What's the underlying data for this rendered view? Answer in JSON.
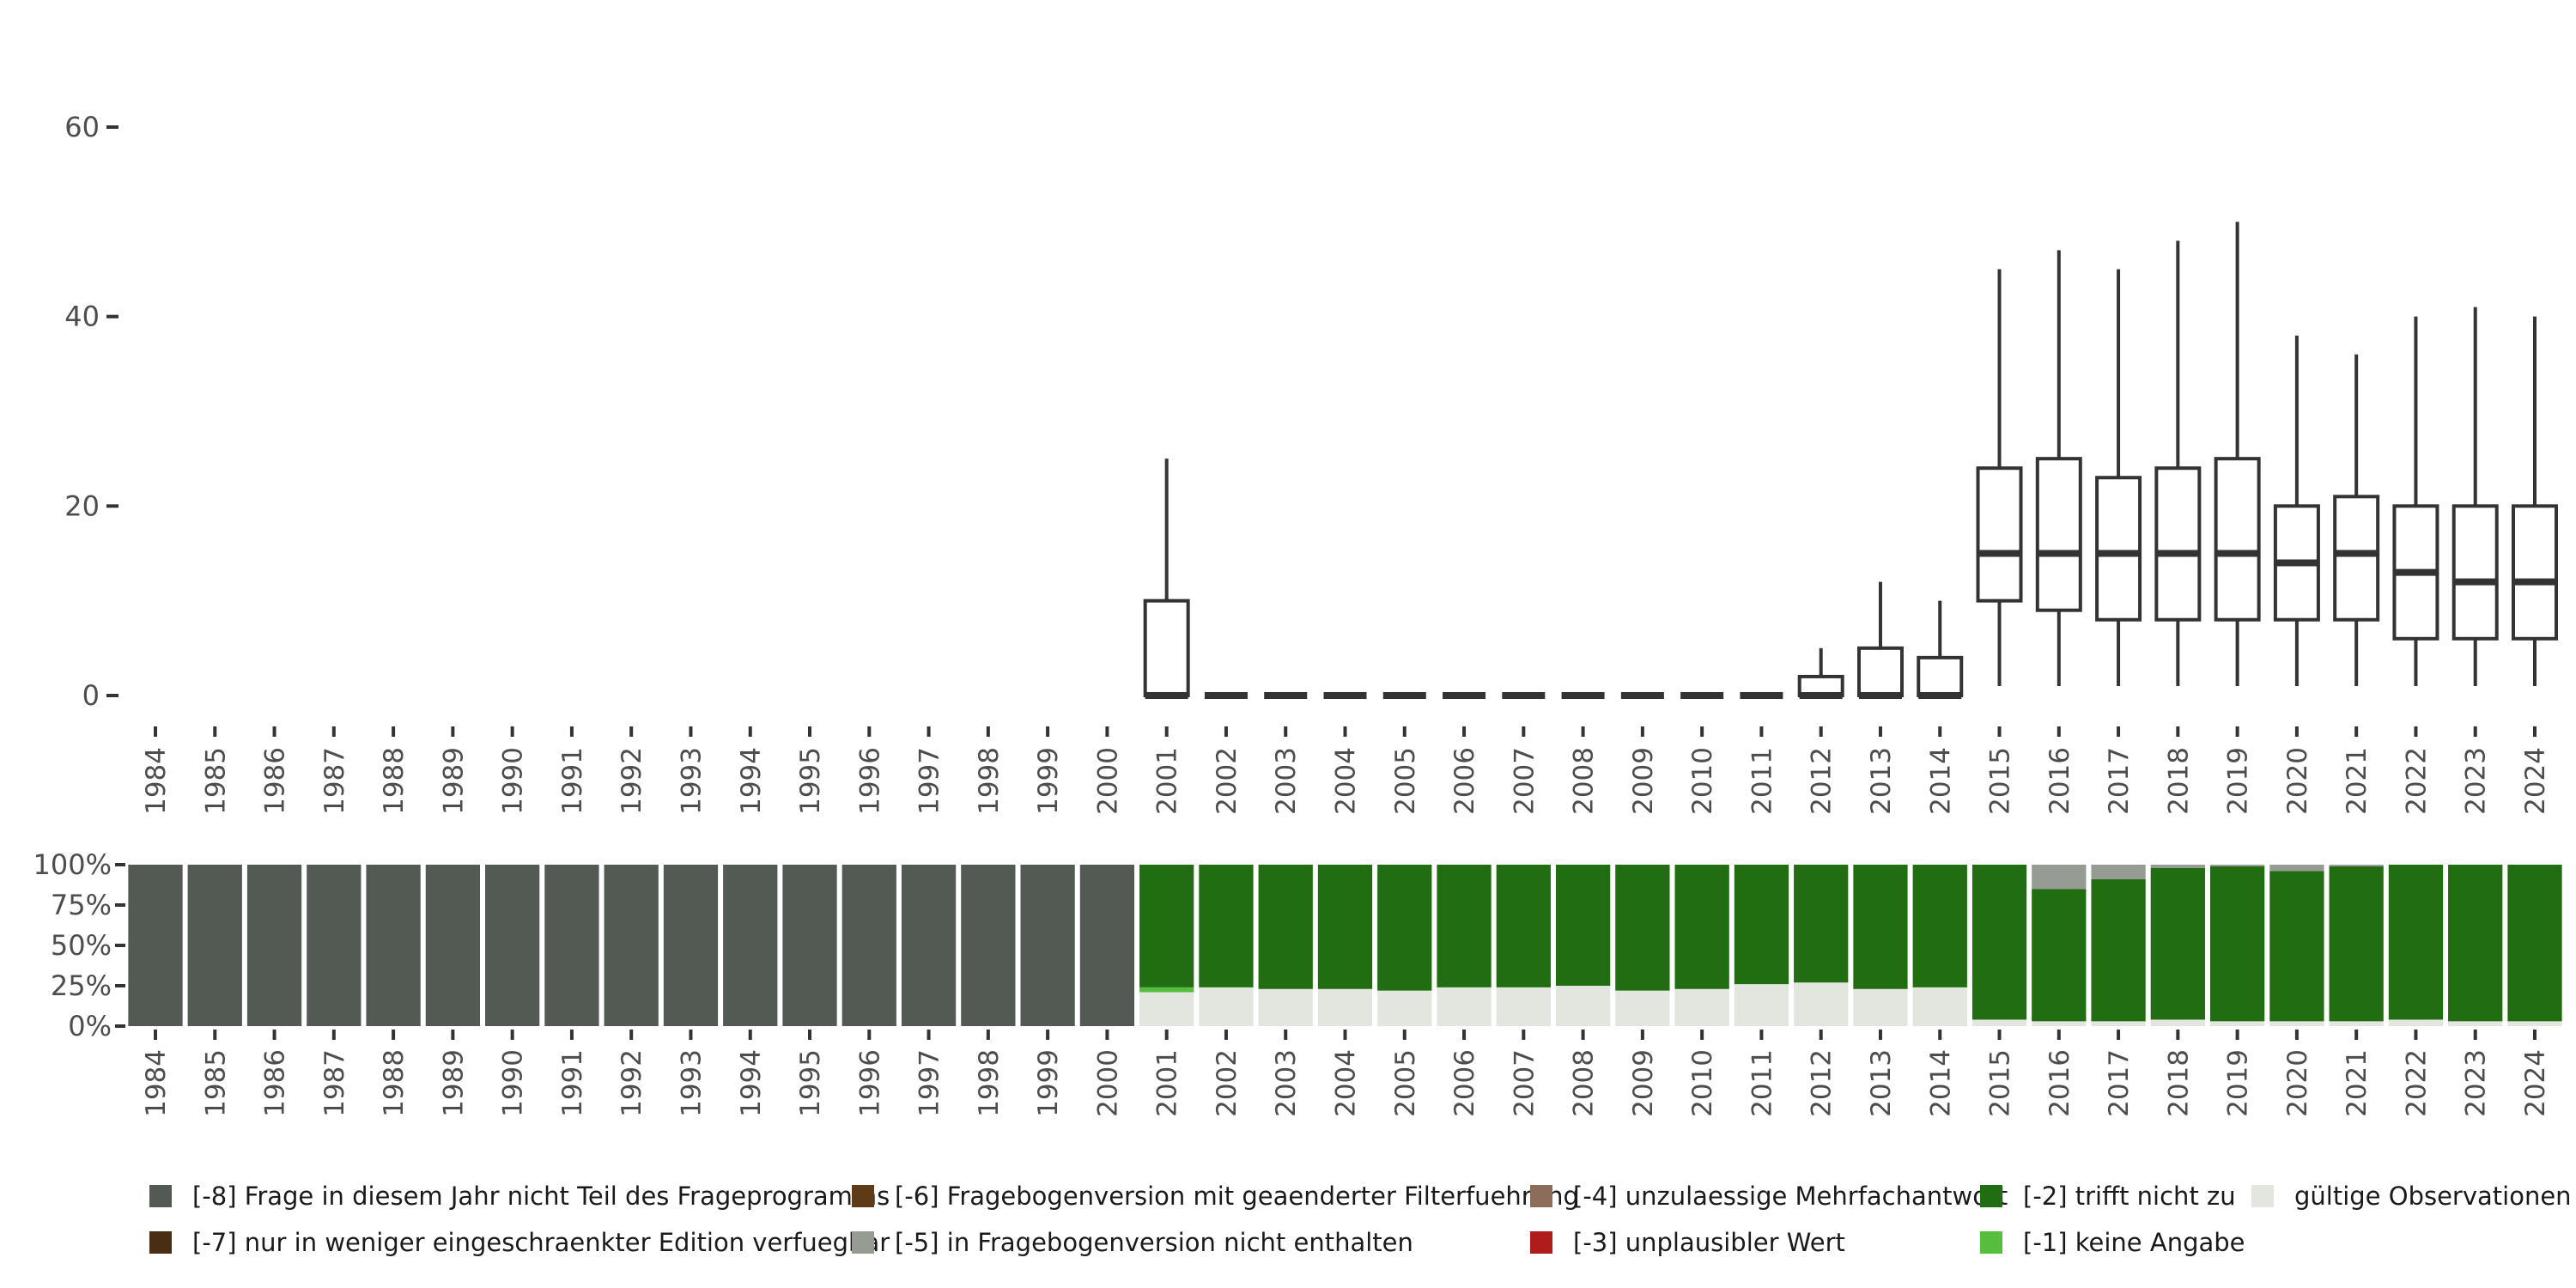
{
  "chart_data": [
    {
      "type": "boxplot",
      "title": "",
      "xlabel": "",
      "ylabel": "",
      "ylim": [
        0,
        65
      ],
      "yticks": [
        0,
        20,
        40,
        60
      ],
      "categories": [
        "1984",
        "1985",
        "1986",
        "1987",
        "1988",
        "1989",
        "1990",
        "1991",
        "1992",
        "1993",
        "1994",
        "1995",
        "1996",
        "1997",
        "1998",
        "1999",
        "2000",
        "2001",
        "2002",
        "2003",
        "2004",
        "2005",
        "2006",
        "2007",
        "2008",
        "2009",
        "2010",
        "2011",
        "2012",
        "2013",
        "2014",
        "2015",
        "2016",
        "2017",
        "2018",
        "2019",
        "2020",
        "2021",
        "2022",
        "2023",
        "2024"
      ],
      "boxes": [
        {
          "year": "2001",
          "lower": 0,
          "q1": 0,
          "median": 0,
          "q3": 10,
          "upper": 25
        },
        {
          "year": "2002",
          "lower": 0,
          "q1": 0,
          "median": 0,
          "q3": 0,
          "upper": 0
        },
        {
          "year": "2003",
          "lower": 0,
          "q1": 0,
          "median": 0,
          "q3": 0,
          "upper": 0
        },
        {
          "year": "2004",
          "lower": 0,
          "q1": 0,
          "median": 0,
          "q3": 0,
          "upper": 0
        },
        {
          "year": "2005",
          "lower": 0,
          "q1": 0,
          "median": 0,
          "q3": 0,
          "upper": 0
        },
        {
          "year": "2006",
          "lower": 0,
          "q1": 0,
          "median": 0,
          "q3": 0,
          "upper": 0
        },
        {
          "year": "2007",
          "lower": 0,
          "q1": 0,
          "median": 0,
          "q3": 0,
          "upper": 0
        },
        {
          "year": "2008",
          "lower": 0,
          "q1": 0,
          "median": 0,
          "q3": 0,
          "upper": 0
        },
        {
          "year": "2009",
          "lower": 0,
          "q1": 0,
          "median": 0,
          "q3": 0,
          "upper": 0
        },
        {
          "year": "2010",
          "lower": 0,
          "q1": 0,
          "median": 0,
          "q3": 0,
          "upper": 0
        },
        {
          "year": "2011",
          "lower": 0,
          "q1": 0,
          "median": 0,
          "q3": 0,
          "upper": 0
        },
        {
          "year": "2012",
          "lower": 0,
          "q1": 0,
          "median": 0,
          "q3": 2,
          "upper": 5
        },
        {
          "year": "2013",
          "lower": 0,
          "q1": 0,
          "median": 0,
          "q3": 5,
          "upper": 12
        },
        {
          "year": "2014",
          "lower": 0,
          "q1": 0,
          "median": 0,
          "q3": 4,
          "upper": 10
        },
        {
          "year": "2015",
          "lower": 1,
          "q1": 10,
          "median": 15,
          "q3": 24,
          "upper": 45
        },
        {
          "year": "2016",
          "lower": 1,
          "q1": 9,
          "median": 15,
          "q3": 25,
          "upper": 47
        },
        {
          "year": "2017",
          "lower": 1,
          "q1": 8,
          "median": 15,
          "q3": 23,
          "upper": 45
        },
        {
          "year": "2018",
          "lower": 1,
          "q1": 8,
          "median": 15,
          "q3": 24,
          "upper": 48
        },
        {
          "year": "2019",
          "lower": 1,
          "q1": 8,
          "median": 15,
          "q3": 25,
          "upper": 50
        },
        {
          "year": "2020",
          "lower": 1,
          "q1": 8,
          "median": 14,
          "q3": 20,
          "upper": 38
        },
        {
          "year": "2021",
          "lower": 1,
          "q1": 8,
          "median": 15,
          "q3": 21,
          "upper": 36
        },
        {
          "year": "2022",
          "lower": 1,
          "q1": 6,
          "median": 13,
          "q3": 20,
          "upper": 40
        },
        {
          "year": "2023",
          "lower": 1,
          "q1": 6,
          "median": 12,
          "q3": 20,
          "upper": 41
        },
        {
          "year": "2024",
          "lower": 1,
          "q1": 6,
          "median": 12,
          "q3": 20,
          "upper": 40
        }
      ]
    },
    {
      "type": "stacked-bar",
      "title": "",
      "xlabel": "",
      "ylabel": "",
      "ylim": [
        0,
        100
      ],
      "yticks": [
        "0%",
        "25%",
        "50%",
        "75%",
        "100%"
      ],
      "categories": [
        "1984",
        "1985",
        "1986",
        "1987",
        "1988",
        "1989",
        "1990",
        "1991",
        "1992",
        "1993",
        "1994",
        "1995",
        "1996",
        "1997",
        "1998",
        "1999",
        "2000",
        "2001",
        "2002",
        "2003",
        "2004",
        "2005",
        "2006",
        "2007",
        "2008",
        "2009",
        "2010",
        "2011",
        "2012",
        "2013",
        "2014",
        "2015",
        "2016",
        "2017",
        "2018",
        "2019",
        "2020",
        "2021",
        "2022",
        "2023",
        "2024"
      ],
      "stack_order": [
        "valid",
        "m1",
        "m2",
        "m5",
        "m8"
      ],
      "series": [
        {
          "key": "valid",
          "name": "gültige Observationen",
          "color": "#e2e6df",
          "values": [
            0,
            0,
            0,
            0,
            0,
            0,
            0,
            0,
            0,
            0,
            0,
            0,
            0,
            0,
            0,
            0,
            0,
            21,
            24,
            23,
            23,
            22,
            24,
            24,
            25,
            22,
            23,
            26,
            27,
            23,
            24,
            4,
            3,
            3,
            4,
            3,
            3,
            3,
            4,
            3,
            3
          ]
        },
        {
          "key": "m1",
          "name": "[-1] keine Angabe",
          "color": "#56bd3d",
          "values": [
            0,
            0,
            0,
            0,
            0,
            0,
            0,
            0,
            0,
            0,
            0,
            0,
            0,
            0,
            0,
            0,
            0,
            3,
            0,
            0,
            0,
            0,
            0,
            0,
            0,
            0,
            0,
            0,
            0,
            0,
            0,
            0,
            0,
            0,
            0,
            0,
            0,
            0,
            0,
            0,
            0
          ]
        },
        {
          "key": "m2",
          "name": "[-2] trifft nicht zu",
          "color": "#216e12",
          "values": [
            0,
            0,
            0,
            0,
            0,
            0,
            0,
            0,
            0,
            0,
            0,
            0,
            0,
            0,
            0,
            0,
            0,
            76,
            76,
            77,
            77,
            78,
            76,
            76,
            75,
            78,
            77,
            74,
            73,
            77,
            76,
            96,
            82,
            88,
            94,
            96,
            93,
            96,
            96,
            97,
            97
          ]
        },
        {
          "key": "m5",
          "name": "[-5] in Fragebogenversion nicht enthalten",
          "color": "#969b94",
          "values": [
            0,
            0,
            0,
            0,
            0,
            0,
            0,
            0,
            0,
            0,
            0,
            0,
            0,
            0,
            0,
            0,
            0,
            0,
            0,
            0,
            0,
            0,
            0,
            0,
            0,
            0,
            0,
            0,
            0,
            0,
            0,
            0,
            15,
            9,
            2,
            1,
            4,
            1,
            0,
            0,
            0
          ]
        },
        {
          "key": "m8",
          "name": "[-8] Frage in diesem Jahr nicht Teil des Frageprogramms",
          "color": "#535a54",
          "values": [
            100,
            100,
            100,
            100,
            100,
            100,
            100,
            100,
            100,
            100,
            100,
            100,
            100,
            100,
            100,
            100,
            100,
            0,
            0,
            0,
            0,
            0,
            0,
            0,
            0,
            0,
            0,
            0,
            0,
            0,
            0,
            0,
            0,
            0,
            0,
            0,
            0,
            0,
            0,
            0,
            0
          ]
        }
      ]
    }
  ],
  "legend": [
    {
      "key": "m8",
      "label": "[-8] Frage in diesem Jahr nicht Teil des Frageprogramms",
      "color": "#535a54"
    },
    {
      "key": "m7",
      "label": "[-7] nur in weniger eingeschraenkter Edition verfuegbar",
      "color": "#4a2e14"
    },
    {
      "key": "m6",
      "label": "[-6] Fragebogenversion mit geaenderter Filterfuehrung",
      "color": "#5e3a16"
    },
    {
      "key": "m5",
      "label": "[-5] in Fragebogenversion nicht enthalten",
      "color": "#969b94"
    },
    {
      "key": "m4",
      "label": "[-4] unzulaessige Mehrfachantwort",
      "color": "#8c6d5a"
    },
    {
      "key": "m3",
      "label": "[-3] unplausibler Wert",
      "color": "#b01c1c"
    },
    {
      "key": "m2",
      "label": "[-2] trifft nicht zu",
      "color": "#216e12"
    },
    {
      "key": "m1",
      "label": "[-1] keine Angabe",
      "color": "#56bd3d"
    },
    {
      "key": "valid",
      "label": "gültige Observationen",
      "color": "#e2e6df"
    }
  ],
  "colors": {
    "box_stroke": "#333333",
    "box_fill": "#ffffff",
    "tick": "#333333",
    "text": "#4d4d4d"
  }
}
